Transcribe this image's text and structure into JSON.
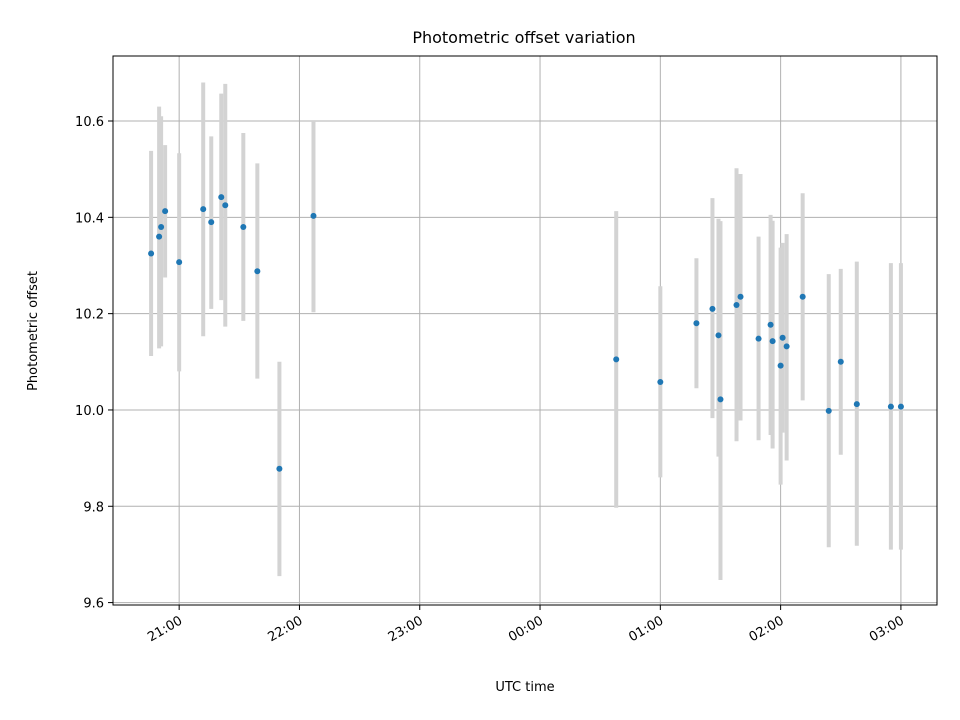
{
  "chart_data": {
    "type": "scatter",
    "title": "Photometric offset variation",
    "xlabel": "UTC time",
    "ylabel": "Photometric offset",
    "x_axis_kind": "time",
    "xlim": [
      "20:27",
      "03:18"
    ],
    "ylim": [
      9.595,
      10.735
    ],
    "x_ticks": [
      "21:00",
      "22:00",
      "23:00",
      "00:00",
      "01:00",
      "02:00",
      "03:00"
    ],
    "y_ticks": [
      "9.6",
      "9.8",
      "10.0",
      "10.2",
      "10.4",
      "10.6"
    ],
    "grid": true,
    "point_color": "#1f77b4",
    "errorbar_color": "#d3d3d3",
    "points": [
      {
        "x": "20:46",
        "y": 10.325,
        "lo": 10.112,
        "hi": 10.538
      },
      {
        "x": "20:50",
        "y": 10.36,
        "lo": 10.128,
        "hi": 10.63
      },
      {
        "x": "20:51",
        "y": 10.38,
        "lo": 10.132,
        "hi": 10.61
      },
      {
        "x": "20:53",
        "y": 10.413,
        "lo": 10.275,
        "hi": 10.55
      },
      {
        "x": "21:00",
        "y": 10.307,
        "lo": 10.08,
        "hi": 10.533
      },
      {
        "x": "21:12",
        "y": 10.417,
        "lo": 10.153,
        "hi": 10.68
      },
      {
        "x": "21:16",
        "y": 10.39,
        "lo": 10.21,
        "hi": 10.568
      },
      {
        "x": "21:21",
        "y": 10.442,
        "lo": 10.228,
        "hi": 10.657
      },
      {
        "x": "21:23",
        "y": 10.425,
        "lo": 10.173,
        "hi": 10.677
      },
      {
        "x": "21:32",
        "y": 10.38,
        "lo": 10.185,
        "hi": 10.575
      },
      {
        "x": "21:39",
        "y": 10.288,
        "lo": 10.065,
        "hi": 10.512
      },
      {
        "x": "21:50",
        "y": 9.878,
        "lo": 9.655,
        "hi": 10.1
      },
      {
        "x": "22:07",
        "y": 10.403,
        "lo": 10.203,
        "hi": 10.6
      },
      {
        "x": "00:38",
        "y": 10.105,
        "lo": 9.797,
        "hi": 10.413
      },
      {
        "x": "01:00",
        "y": 10.058,
        "lo": 9.86,
        "hi": 10.257
      },
      {
        "x": "01:18",
        "y": 10.18,
        "lo": 10.045,
        "hi": 10.315
      },
      {
        "x": "01:26",
        "y": 10.21,
        "lo": 9.983,
        "hi": 10.44
      },
      {
        "x": "01:29",
        "y": 10.155,
        "lo": 9.903,
        "hi": 10.397
      },
      {
        "x": "01:30",
        "y": 10.022,
        "lo": 9.647,
        "hi": 10.392
      },
      {
        "x": "01:38",
        "y": 10.218,
        "lo": 9.935,
        "hi": 10.502
      },
      {
        "x": "01:40",
        "y": 10.235,
        "lo": 9.978,
        "hi": 10.49
      },
      {
        "x": "01:49",
        "y": 10.148,
        "lo": 9.937,
        "hi": 10.36
      },
      {
        "x": "01:55",
        "y": 10.177,
        "lo": 9.948,
        "hi": 10.405
      },
      {
        "x": "01:56",
        "y": 10.143,
        "lo": 9.92,
        "hi": 10.393
      },
      {
        "x": "02:00",
        "y": 10.092,
        "lo": 9.845,
        "hi": 10.337
      },
      {
        "x": "02:01",
        "y": 10.15,
        "lo": 9.953,
        "hi": 10.347
      },
      {
        "x": "02:03",
        "y": 10.132,
        "lo": 9.895,
        "hi": 10.365
      },
      {
        "x": "02:11",
        "y": 10.235,
        "lo": 10.02,
        "hi": 10.45
      },
      {
        "x": "02:24",
        "y": 9.998,
        "lo": 9.715,
        "hi": 10.282
      },
      {
        "x": "02:30",
        "y": 10.1,
        "lo": 9.907,
        "hi": 10.293
      },
      {
        "x": "02:38",
        "y": 10.012,
        "lo": 9.718,
        "hi": 10.308
      },
      {
        "x": "02:55",
        "y": 10.007,
        "lo": 9.71,
        "hi": 10.305
      },
      {
        "x": "03:00",
        "y": 10.007,
        "lo": 9.71,
        "hi": 10.305
      }
    ]
  }
}
